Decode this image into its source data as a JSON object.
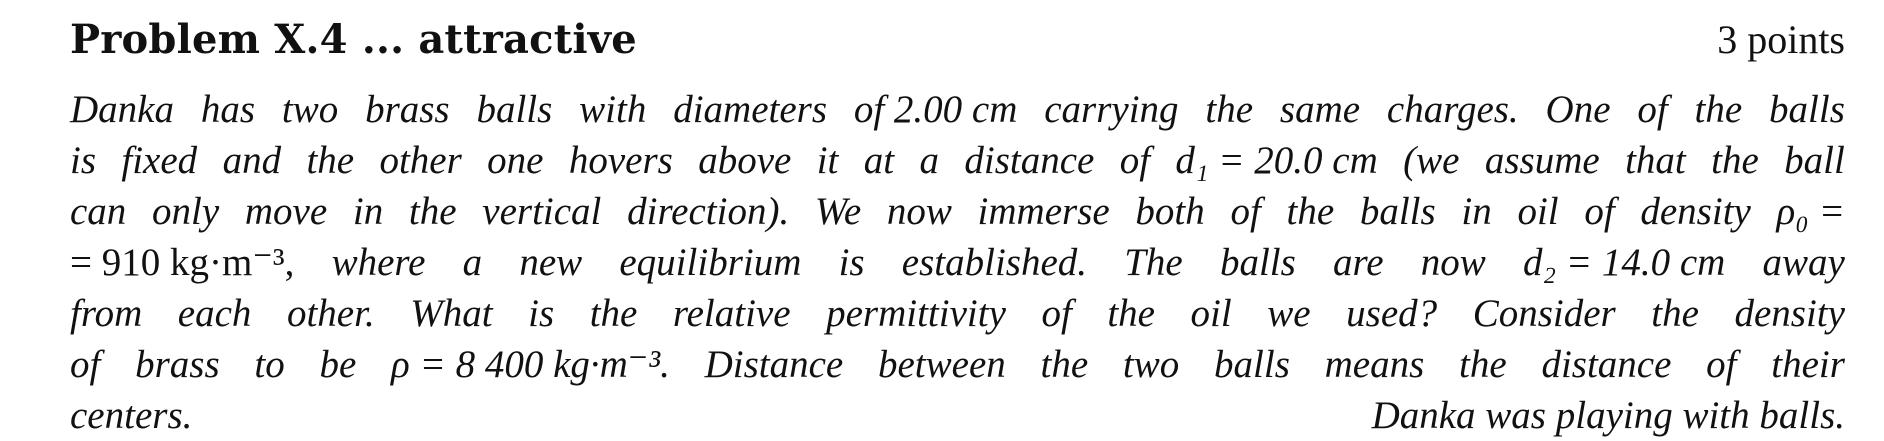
{
  "problem": {
    "title": "Problem X.4 ... attractive",
    "points": "3 points"
  },
  "lines": [
    [
      "Danka",
      "has",
      "two",
      "brass",
      "balls",
      "with",
      "diameters",
      "of 2.00 cm",
      "carrying",
      "the",
      "same",
      "charges.",
      "One",
      "of",
      "the",
      "balls"
    ],
    [
      "is",
      "fixed",
      "and",
      "the",
      "other",
      "one",
      "hovers",
      "above",
      "it",
      "at",
      "a",
      "distance",
      "of",
      "d₁ = 20.0 cm",
      "(we",
      "assume",
      "that",
      "the",
      "ball"
    ],
    [
      "can",
      "only",
      "move",
      "in",
      "the",
      "vertical",
      "direction).",
      "We",
      "now",
      "immerse",
      "both",
      "of",
      "the",
      "balls",
      "in",
      "oil",
      "of",
      "density",
      "ρ₀ ="
    ],
    [
      "= 910 kg·m⁻³,",
      "where",
      "a",
      "new",
      "equilibrium",
      "is",
      "established.",
      "The",
      "balls",
      "are",
      "now",
      "d₂ = 14.0 cm",
      "away"
    ],
    [
      "from",
      "each",
      "other.",
      "What",
      "is",
      "the",
      "relative",
      "permittivity",
      "of",
      "the",
      "oil",
      "we",
      "used?",
      "Consider",
      "the",
      "density"
    ],
    [
      "of",
      "brass",
      "to",
      "be",
      "ρ = 8 400 kg·m⁻³.",
      "Distance",
      "between",
      "the",
      "two",
      "balls",
      "means",
      "the",
      "distance",
      "of",
      "their"
    ]
  ],
  "last_line": {
    "left": "centers.",
    "right": "Danka was playing with balls."
  }
}
